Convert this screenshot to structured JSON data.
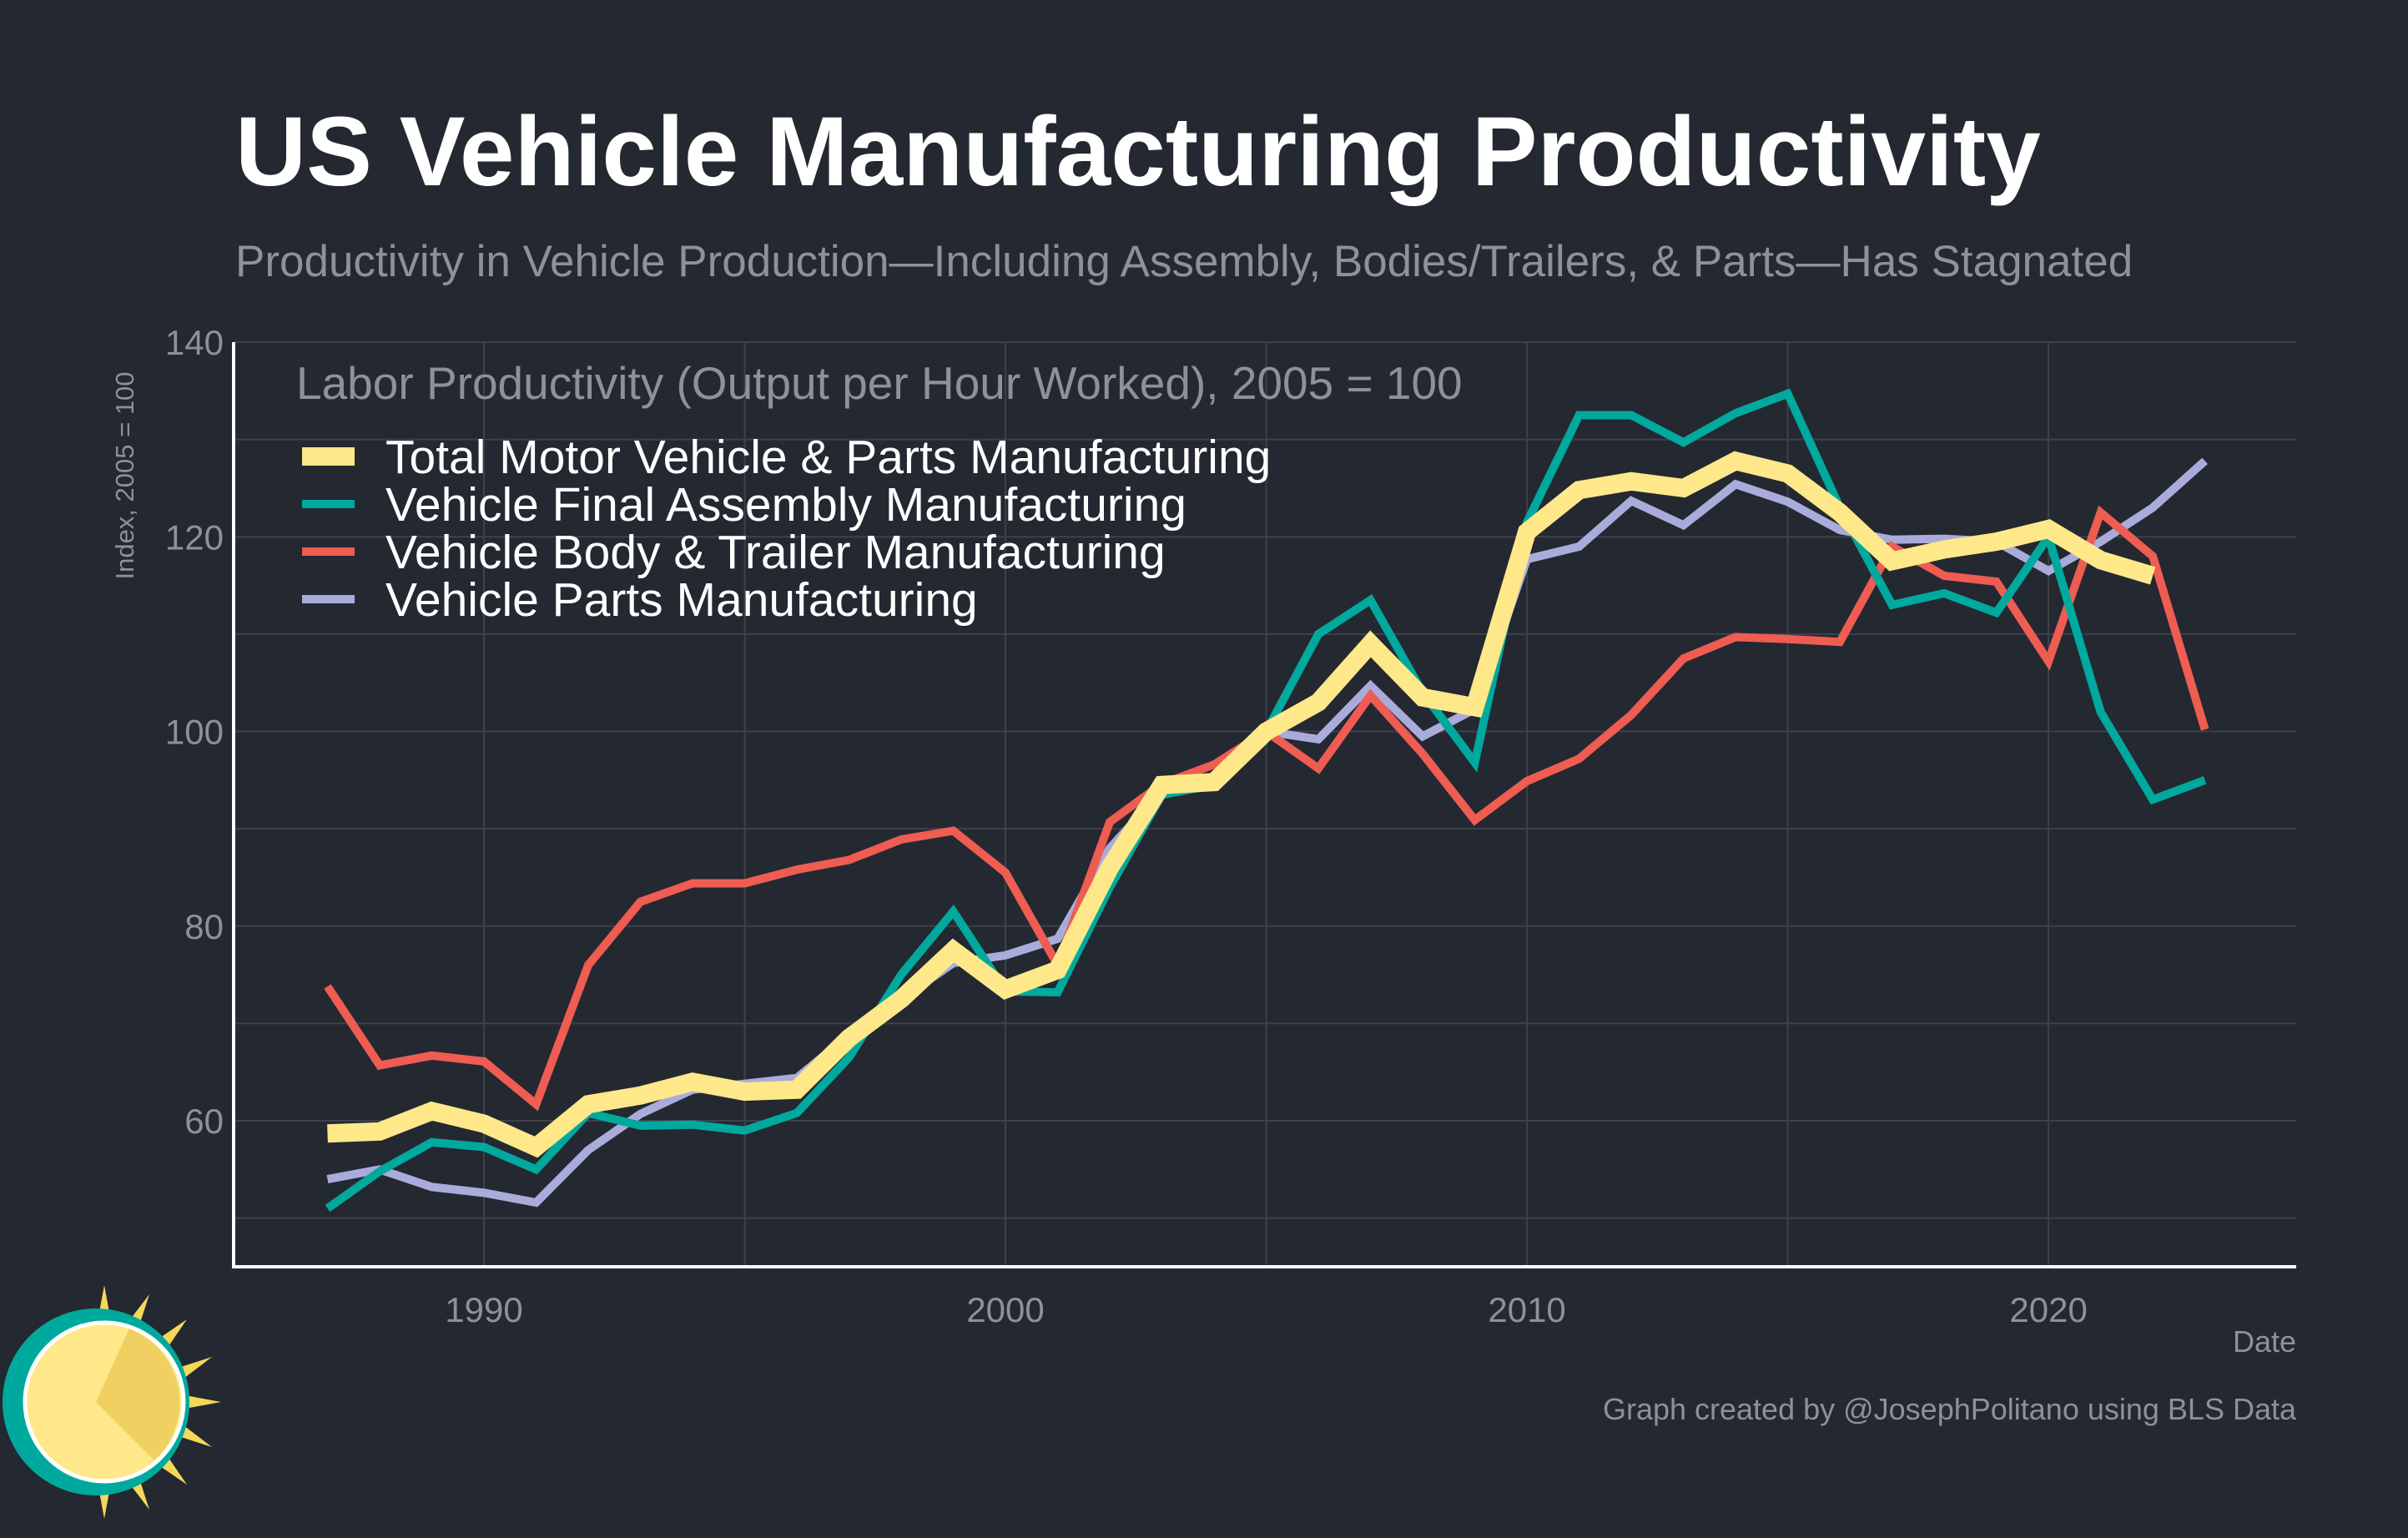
{
  "chart_data": {
    "type": "line",
    "title": "US Vehicle Manufacturing Productivity",
    "subtitle": "Productivity in Vehicle Production—Including Assembly, Bodies/Trailers, & Parts—Has Stagnated",
    "legend_title": "Labor Productivity (Output per Hour Worked), 2005 = 100",
    "legend_position": "top-left",
    "xlabel": "Date",
    "ylabel": "Index, 2005 = 100",
    "credit": "Graph created by @JosephPolitano using BLS Data",
    "xlim": [
      1985.2,
      2024.75
    ],
    "ylim": [
      45,
      140
    ],
    "grid": true,
    "x_ticks": [
      1990,
      2000,
      2010,
      2020
    ],
    "y_ticks": [
      60,
      80,
      100,
      120,
      140
    ],
    "background": "#242831",
    "series": [
      {
        "name": "Total Motor Vehicle & Parts Manufacturing",
        "color": "#fee88a",
        "start_year": 1987,
        "values": [
          58.7,
          58.9,
          61,
          59.7,
          57.3,
          61.7,
          62.6,
          64,
          63,
          63.2,
          68.5,
          72.5,
          77.5,
          73.5,
          75.5,
          86,
          94.5,
          94.8,
          100,
          103,
          109,
          103.5,
          102.5,
          120.5,
          124.8,
          125.7,
          125,
          127.8,
          126.5,
          122.5,
          117.5,
          118.7,
          119.5,
          120.8,
          117.6,
          116
        ]
      },
      {
        "name": "Vehicle Final Assembly Manufacturing",
        "color": "#00a99d",
        "start_year": 1987,
        "values": [
          51,
          54.8,
          57.8,
          57.3,
          55,
          60.8,
          59.5,
          59.6,
          59,
          60.8,
          66.5,
          75,
          81.5,
          73.3,
          73.2,
          84,
          93.5,
          94.5,
          100,
          110,
          113.5,
          104,
          96.8,
          121.5,
          132.5,
          132.5,
          129.7,
          132.7,
          134.7,
          123,
          113,
          114.2,
          112.2,
          120,
          102,
          93,
          95
        ]
      },
      {
        "name": "Vehicle Body & Trailer Manufacturing",
        "color": "#ee5c52",
        "start_year": 1987,
        "values": [
          73.8,
          65.7,
          66.7,
          66.1,
          61.7,
          76,
          82.5,
          84.4,
          84.4,
          85.8,
          86.8,
          88.9,
          89.8,
          85.5,
          76,
          90.7,
          94.6,
          96.6,
          100,
          96.2,
          103.7,
          97.7,
          90.9,
          94.9,
          97.2,
          101.7,
          107.5,
          109.7,
          109.5,
          109.2,
          119,
          116,
          115.4,
          107.2,
          122.5,
          118,
          100.2
        ]
      },
      {
        "name": "Vehicle Parts Manufacturing",
        "color": "#a9acdb",
        "start_year": 1987,
        "values": [
          54,
          55,
          53.2,
          52.6,
          51.6,
          57,
          60.7,
          63.2,
          63.8,
          64.4,
          68.8,
          72.5,
          76.2,
          77,
          78.7,
          88,
          93.9,
          95,
          100,
          99.2,
          104.7,
          99.5,
          102.3,
          117.7,
          119,
          123.7,
          121.2,
          125.4,
          123.6,
          120.7,
          119.7,
          119.8,
          119.5,
          116.5,
          119.5,
          123,
          127.8
        ]
      }
    ]
  }
}
